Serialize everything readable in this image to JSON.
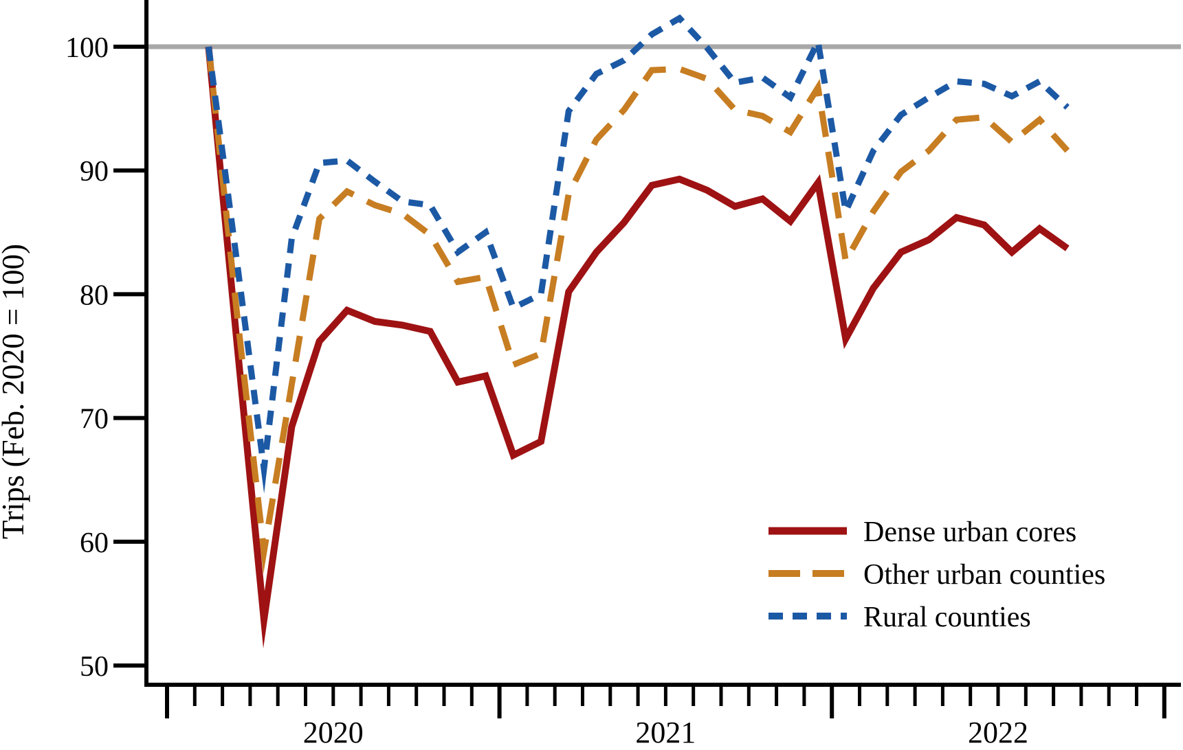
{
  "chart_data": {
    "type": "line",
    "title": "",
    "xlabel": "",
    "ylabel": "Trips (Feb. 2020 = 100)",
    "x_year_labels": [
      "2020",
      "2021",
      "2022"
    ],
    "months": [
      "Feb 2020",
      "Mar 2020",
      "Apr 2020",
      "May 2020",
      "Jun 2020",
      "Jul 2020",
      "Aug 2020",
      "Sep 2020",
      "Oct 2020",
      "Nov 2020",
      "Dec 2020",
      "Jan 2021",
      "Feb 2021",
      "Mar 2021",
      "Apr 2021",
      "May 2021",
      "Jun 2021",
      "Jul 2021",
      "Aug 2021",
      "Sep 2021",
      "Oct 2021",
      "Nov 2021",
      "Dec 2021",
      "Jan 2022",
      "Feb 2022",
      "Mar 2022",
      "Apr 2022",
      "May 2022",
      "Jun 2022",
      "Jul 2022",
      "Aug 2022",
      "Sep 2022"
    ],
    "yticks": [
      50,
      60,
      70,
      80,
      90,
      100
    ],
    "ylim": [
      47,
      103
    ],
    "grid": "off",
    "legend_position": "lower-right",
    "axis_color": "#000000",
    "background_color": "#ffffff",
    "reference_line": {
      "value": 100,
      "color": "#a8a8a8"
    },
    "series": [
      {
        "name": "Dense urban cores",
        "color": "#9e1213",
        "line_style": "solid",
        "values": [
          100,
          76.6,
          53.7,
          69.3,
          76.2,
          78.7,
          77.8,
          77.5,
          77.0,
          72.9,
          73.4,
          67.0,
          68.1,
          80.2,
          83.4,
          85.8,
          88.8,
          89.3,
          88.4,
          87.1,
          87.7,
          85.9,
          89.0,
          76.4,
          80.5,
          83.4,
          84.4,
          86.2,
          85.6,
          83.4,
          85.3,
          83.7
        ]
      },
      {
        "name": "Other urban counties",
        "color": "#c77d21",
        "line_style": "long-dash",
        "values": [
          100,
          78.9,
          59.2,
          72.7,
          86.1,
          88.3,
          87.2,
          86.5,
          84.8,
          81.0,
          81.4,
          74.3,
          75.2,
          88.1,
          92.5,
          94.9,
          98.1,
          98.2,
          97.4,
          94.9,
          94.4,
          93.1,
          96.7,
          82.7,
          86.7,
          89.9,
          91.6,
          94.1,
          94.3,
          92.3,
          94.1,
          91.6
        ]
      },
      {
        "name": "Rural counties",
        "color": "#1c59a5",
        "line_style": "short-dash",
        "values": [
          100,
          83.0,
          65.9,
          84.5,
          90.6,
          90.8,
          89.1,
          87.5,
          87.2,
          83.4,
          85.0,
          78.9,
          80.0,
          94.8,
          97.8,
          98.9,
          101.0,
          102.3,
          99.9,
          97.1,
          97.5,
          95.9,
          100.4,
          86.7,
          91.6,
          94.5,
          95.9,
          97.2,
          97.0,
          96.0,
          97.2,
          95.1
        ]
      }
    ]
  }
}
